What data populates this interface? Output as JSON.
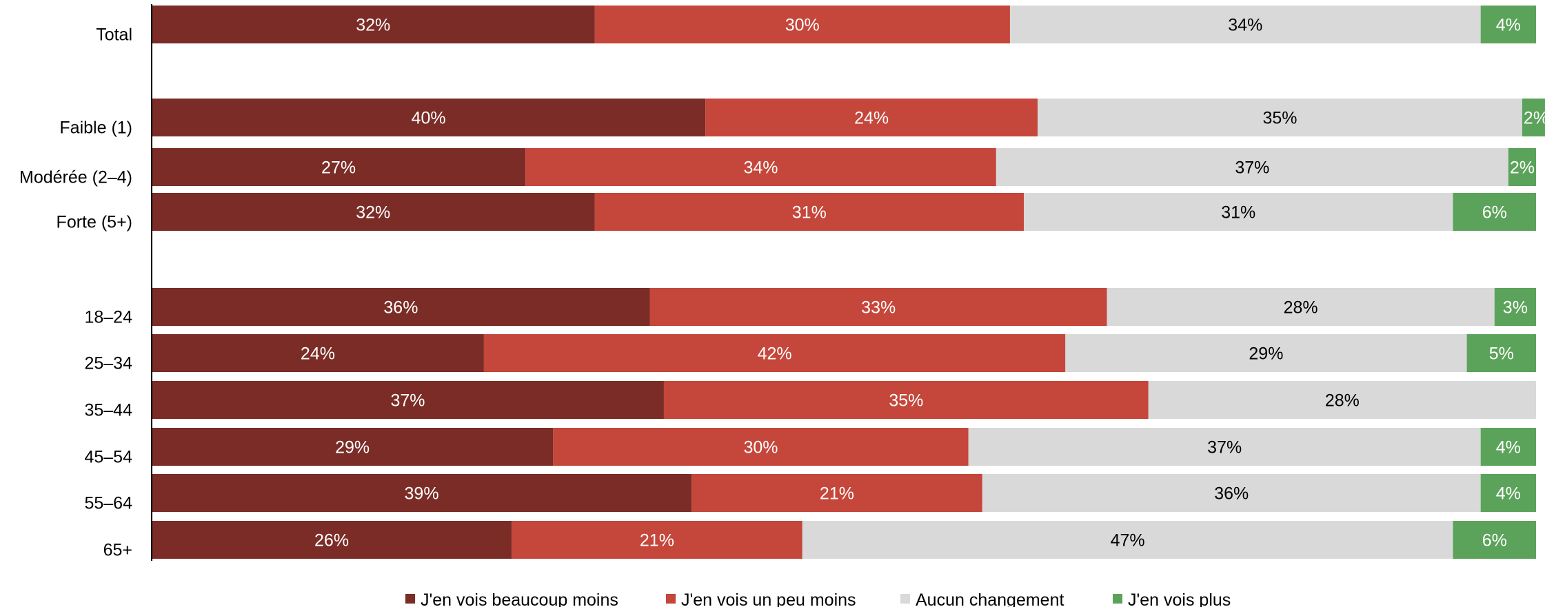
{
  "chart_data": {
    "type": "bar",
    "orientation": "horizontal",
    "stacked": true,
    "xlim": [
      0,
      100
    ],
    "grid": false,
    "legend_position": "bottom",
    "categories": [
      "Total",
      "Faible (1)",
      "Modérée (2–4)",
      "Forte (5+)",
      "18–24",
      "25–34",
      "35–44",
      "45–54",
      "55–64",
      "65+"
    ],
    "series": [
      {
        "name": "J'en vois beaucoup moins",
        "color": "#7b2c26",
        "label_color": "#ffffff",
        "values": [
          32,
          40,
          27,
          32,
          36,
          24,
          37,
          29,
          39,
          26
        ],
        "labels": [
          "32%",
          "40%",
          "27%",
          "32%",
          "36%",
          "24%",
          "37%",
          "29%",
          "39%",
          "26%"
        ]
      },
      {
        "name": "J'en vois un peu moins",
        "color": "#c5463a",
        "label_color": "#ffffff",
        "values": [
          30,
          24,
          34,
          31,
          33,
          42,
          35,
          30,
          21,
          21
        ],
        "labels": [
          "30%",
          "24%",
          "34%",
          "31%",
          "33%",
          "42%",
          "35%",
          "30%",
          "21%",
          "21%"
        ]
      },
      {
        "name": "Aucun changement",
        "color": "#d9d9d9",
        "label_color": "#000000",
        "values": [
          34,
          35,
          37,
          31,
          28,
          29,
          28,
          37,
          36,
          47
        ],
        "labels": [
          "34%",
          "35%",
          "37%",
          "31%",
          "28%",
          "29%",
          "28%",
          "37%",
          "36%",
          "47%"
        ]
      },
      {
        "name": "J'en vois plus",
        "color": "#5ba35a",
        "label_color": "#ffffff",
        "values": [
          4,
          2,
          2,
          6,
          3,
          5,
          0,
          4,
          4,
          6
        ],
        "labels": [
          "4%",
          "2%",
          "2%",
          "6%",
          "3%",
          "5%",
          "",
          "4%",
          "4%",
          "6%"
        ]
      }
    ]
  }
}
